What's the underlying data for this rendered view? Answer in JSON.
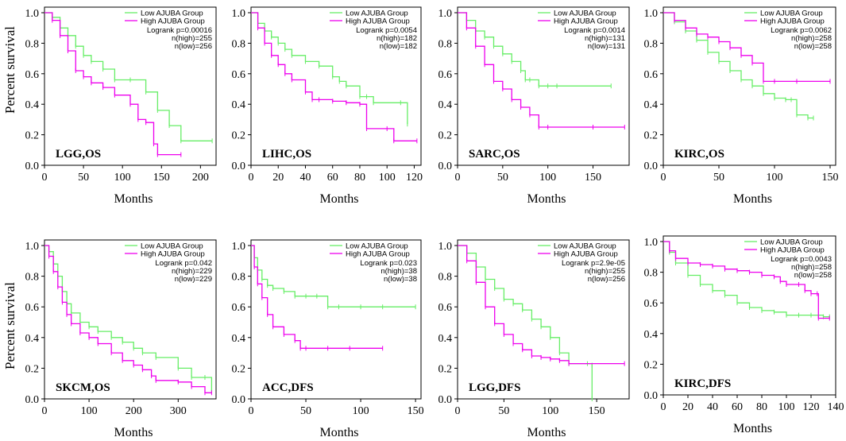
{
  "y_axis_label": "Percent survival",
  "colors": {
    "low": "#66ee66",
    "high": "#ee00ee",
    "axis": "#000000"
  },
  "chart_data": [
    {
      "type": "line",
      "panel": "LGG,OS",
      "title": "LGG,OS",
      "xlabel": "Months",
      "ylabel": "Percent survival",
      "xlim": [
        0,
        220
      ],
      "ylim": [
        0,
        1
      ],
      "xticks": [
        0,
        50,
        100,
        150,
        200
      ],
      "yticks": [
        0.0,
        0.2,
        0.4,
        0.6,
        0.8,
        1.0
      ],
      "legend": [
        "Low AJUBA Group",
        "High AJUBA Group"
      ],
      "stats": [
        "Logrank p=0.00016",
        "n(high)=255",
        "n(low)=256"
      ],
      "series": [
        {
          "name": "Low AJUBA Group",
          "x": [
            0,
            10,
            20,
            30,
            40,
            50,
            60,
            75,
            90,
            110,
            130,
            145,
            160,
            175,
            215
          ],
          "y": [
            1.0,
            0.97,
            0.9,
            0.85,
            0.78,
            0.72,
            0.68,
            0.63,
            0.56,
            0.56,
            0.48,
            0.36,
            0.26,
            0.16,
            0.16
          ]
        },
        {
          "name": "High AJUBA Group",
          "x": [
            0,
            10,
            20,
            30,
            40,
            50,
            60,
            75,
            90,
            110,
            120,
            130,
            140,
            145,
            175
          ],
          "y": [
            1.0,
            0.95,
            0.85,
            0.75,
            0.62,
            0.58,
            0.54,
            0.51,
            0.46,
            0.4,
            0.3,
            0.28,
            0.14,
            0.07,
            0.07
          ]
        }
      ]
    },
    {
      "type": "line",
      "panel": "LIHC,OS",
      "title": "LIHC,OS",
      "xlabel": "Months",
      "ylabel": "",
      "xlim": [
        0,
        125
      ],
      "ylim": [
        0,
        1
      ],
      "xticks": [
        0,
        20,
        40,
        60,
        80,
        100,
        120
      ],
      "yticks": [
        0.0,
        0.2,
        0.4,
        0.6,
        0.8,
        1.0
      ],
      "legend": [
        "Low AJUBA Group",
        "High AJUBA Group"
      ],
      "stats": [
        "Logrank p=0.0054",
        "n(high)=182",
        "n(low)=182"
      ],
      "series": [
        {
          "name": "Low AJUBA Group",
          "x": [
            0,
            5,
            10,
            15,
            20,
            25,
            30,
            40,
            50,
            60,
            65,
            70,
            80,
            85,
            90,
            110,
            115
          ],
          "y": [
            1.0,
            0.93,
            0.88,
            0.84,
            0.8,
            0.76,
            0.72,
            0.68,
            0.65,
            0.58,
            0.55,
            0.52,
            0.45,
            0.45,
            0.41,
            0.41,
            0.27
          ]
        },
        {
          "name": "High AJUBA Group",
          "x": [
            0,
            5,
            10,
            15,
            20,
            25,
            30,
            40,
            45,
            50,
            60,
            70,
            80,
            85,
            100,
            105,
            122
          ],
          "y": [
            1.0,
            0.9,
            0.8,
            0.72,
            0.66,
            0.6,
            0.56,
            0.48,
            0.43,
            0.43,
            0.42,
            0.41,
            0.4,
            0.24,
            0.24,
            0.16,
            0.16
          ]
        }
      ]
    },
    {
      "type": "line",
      "panel": "SARC,OS",
      "title": "SARC,OS",
      "xlabel": "Months",
      "ylabel": "",
      "xlim": [
        0,
        190
      ],
      "ylim": [
        0,
        1
      ],
      "xticks": [
        0,
        50,
        100,
        150
      ],
      "yticks": [
        0.0,
        0.2,
        0.4,
        0.6,
        0.8,
        1.0
      ],
      "legend": [
        "Low AJUBA Group",
        "High AJUBA Group"
      ],
      "stats": [
        "Logrank p=0.0014",
        "n(high)=131",
        "n(low)=131"
      ],
      "series": [
        {
          "name": "Low AJUBA Group",
          "x": [
            0,
            10,
            20,
            30,
            40,
            50,
            60,
            70,
            75,
            80,
            90,
            100,
            110,
            170
          ],
          "y": [
            1.0,
            0.95,
            0.88,
            0.84,
            0.78,
            0.73,
            0.68,
            0.62,
            0.56,
            0.56,
            0.52,
            0.52,
            0.52,
            0.52
          ]
        },
        {
          "name": "High AJUBA Group",
          "x": [
            0,
            10,
            20,
            30,
            40,
            50,
            60,
            70,
            80,
            90,
            100,
            150,
            185
          ],
          "y": [
            1.0,
            0.9,
            0.78,
            0.66,
            0.55,
            0.5,
            0.43,
            0.38,
            0.33,
            0.25,
            0.25,
            0.25,
            0.25
          ]
        }
      ]
    },
    {
      "type": "line",
      "panel": "KIRC,OS",
      "title": "KIRC,OS",
      "xlabel": "Months",
      "ylabel": "",
      "xlim": [
        0,
        155
      ],
      "ylim": [
        0,
        1
      ],
      "xticks": [
        0,
        50,
        100,
        150
      ],
      "yticks": [
        0.0,
        0.2,
        0.4,
        0.6,
        0.8,
        1.0
      ],
      "legend": [
        "Low AJUBA Group",
        "High AJUBA Group"
      ],
      "stats": [
        "Logrank p=0.0062",
        "n(high)=258",
        "n(low)=258"
      ],
      "series": [
        {
          "name": "Low AJUBA Group",
          "x": [
            0,
            10,
            20,
            30,
            40,
            50,
            60,
            70,
            80,
            90,
            100,
            110,
            115,
            120,
            130,
            135
          ],
          "y": [
            1.0,
            0.94,
            0.88,
            0.82,
            0.74,
            0.68,
            0.62,
            0.56,
            0.52,
            0.47,
            0.44,
            0.43,
            0.43,
            0.33,
            0.31,
            0.31
          ]
        },
        {
          "name": "High AJUBA Group",
          "x": [
            0,
            10,
            20,
            30,
            40,
            50,
            60,
            70,
            80,
            90,
            100,
            120,
            150
          ],
          "y": [
            1.0,
            0.95,
            0.9,
            0.86,
            0.84,
            0.81,
            0.77,
            0.72,
            0.67,
            0.55,
            0.55,
            0.55,
            0.55
          ]
        }
      ]
    },
    {
      "type": "line",
      "panel": "SKCM,OS",
      "title": "SKCM,OS",
      "xlabel": "Months",
      "ylabel": "Percent survival",
      "xlim": [
        0,
        385
      ],
      "ylim": [
        0,
        1
      ],
      "xticks": [
        0,
        100,
        200,
        300
      ],
      "yticks": [
        0.0,
        0.2,
        0.4,
        0.6,
        0.8,
        1.0
      ],
      "legend": [
        "Low AJUBA Group",
        "High AJUBA Group"
      ],
      "stats": [
        "Logrank p=0.042",
        "n(high)=229",
        "n(low)=229"
      ],
      "series": [
        {
          "name": "Low AJUBA Group",
          "x": [
            0,
            10,
            20,
            30,
            40,
            50,
            60,
            80,
            100,
            120,
            150,
            175,
            200,
            220,
            250,
            300,
            330,
            360,
            375
          ],
          "y": [
            1.0,
            0.96,
            0.88,
            0.8,
            0.7,
            0.62,
            0.56,
            0.5,
            0.47,
            0.44,
            0.4,
            0.37,
            0.33,
            0.3,
            0.27,
            0.2,
            0.14,
            0.14,
            0.05
          ]
        },
        {
          "name": "High AJUBA Group",
          "x": [
            0,
            10,
            20,
            30,
            40,
            50,
            60,
            80,
            100,
            120,
            150,
            175,
            200,
            220,
            240,
            250,
            300,
            330,
            360,
            375
          ],
          "y": [
            1.0,
            0.93,
            0.83,
            0.73,
            0.63,
            0.55,
            0.49,
            0.43,
            0.4,
            0.36,
            0.3,
            0.25,
            0.22,
            0.19,
            0.15,
            0.12,
            0.11,
            0.08,
            0.04,
            0.04
          ]
        }
      ]
    },
    {
      "type": "line",
      "panel": "ACC,DFS",
      "title": "ACC,DFS",
      "xlabel": "Months",
      "ylabel": "",
      "xlim": [
        0,
        155
      ],
      "ylim": [
        0,
        1
      ],
      "xticks": [
        0,
        50,
        100,
        150
      ],
      "yticks": [
        0.0,
        0.2,
        0.4,
        0.6,
        0.8,
        1.0
      ],
      "legend": [
        "Low AJUBA Group",
        "High AJUBA Group"
      ],
      "stats": [
        "Logrank p=0.023",
        "n(high)=38",
        "n(low)=38"
      ],
      "series": [
        {
          "name": "Low AJUBA Group",
          "x": [
            0,
            3,
            6,
            10,
            15,
            20,
            30,
            40,
            50,
            60,
            70,
            80,
            100,
            120,
            150
          ],
          "y": [
            1.0,
            0.92,
            0.84,
            0.78,
            0.74,
            0.72,
            0.7,
            0.67,
            0.67,
            0.67,
            0.6,
            0.6,
            0.6,
            0.6,
            0.6
          ]
        },
        {
          "name": "High AJUBA Group",
          "x": [
            0,
            3,
            6,
            10,
            15,
            20,
            30,
            40,
            45,
            50,
            70,
            90,
            120
          ],
          "y": [
            1.0,
            0.86,
            0.75,
            0.66,
            0.55,
            0.47,
            0.42,
            0.38,
            0.33,
            0.33,
            0.33,
            0.33,
            0.33
          ]
        }
      ]
    },
    {
      "type": "line",
      "panel": "LGG,DFS",
      "title": "LGG,DFS",
      "xlabel": "Months",
      "ylabel": "",
      "xlim": [
        0,
        185
      ],
      "ylim": [
        0,
        1
      ],
      "xticks": [
        0,
        50,
        100,
        150
      ],
      "yticks": [
        0.0,
        0.2,
        0.4,
        0.6,
        0.8,
        1.0
      ],
      "legend": [
        "Low AJUBA Group",
        "High AJUBA Group"
      ],
      "stats": [
        "Logrank p=2.9e-05",
        "n(high)=255",
        "n(low)=256"
      ],
      "series": [
        {
          "name": "Low AJUBA Group",
          "x": [
            0,
            10,
            20,
            30,
            40,
            50,
            60,
            70,
            80,
            90,
            100,
            110,
            120,
            140,
            145,
            145
          ],
          "y": [
            1.0,
            0.95,
            0.86,
            0.78,
            0.72,
            0.65,
            0.62,
            0.58,
            0.52,
            0.47,
            0.4,
            0.3,
            0.23,
            0.23,
            0.22,
            0.0
          ]
        },
        {
          "name": "High AJUBA Group",
          "x": [
            0,
            10,
            20,
            30,
            40,
            50,
            60,
            70,
            80,
            90,
            100,
            110,
            120,
            180
          ],
          "y": [
            1.0,
            0.9,
            0.76,
            0.6,
            0.49,
            0.42,
            0.36,
            0.32,
            0.28,
            0.27,
            0.26,
            0.25,
            0.23,
            0.23
          ]
        }
      ]
    },
    {
      "type": "line",
      "panel": "KIRC,DFS",
      "title": "KIRC,DFS",
      "xlabel": "Months",
      "ylabel": "",
      "xlim": [
        0,
        140
      ],
      "ylim": [
        0,
        1
      ],
      "xticks": [
        0,
        20,
        40,
        60,
        80,
        100,
        120,
        140
      ],
      "yticks": [
        0.0,
        0.2,
        0.4,
        0.6,
        0.8,
        1.0
      ],
      "legend": [
        "Low AJUBA Group",
        "High AJUBA Group"
      ],
      "stats": [
        "Logrank p=0.0043",
        "n(high)=258",
        "n(low)=258"
      ],
      "series": [
        {
          "name": "Low AJUBA Group",
          "x": [
            0,
            5,
            10,
            20,
            30,
            40,
            50,
            60,
            70,
            80,
            90,
            100,
            110,
            120,
            130,
            135
          ],
          "y": [
            1.0,
            0.93,
            0.86,
            0.78,
            0.72,
            0.68,
            0.65,
            0.6,
            0.57,
            0.55,
            0.54,
            0.52,
            0.52,
            0.52,
            0.51,
            0.51
          ]
        },
        {
          "name": "High AJUBA Group",
          "x": [
            0,
            5,
            10,
            20,
            30,
            40,
            50,
            60,
            70,
            80,
            90,
            95,
            100,
            110,
            115,
            120,
            125,
            126,
            135
          ],
          "y": [
            1.0,
            0.94,
            0.89,
            0.86,
            0.85,
            0.84,
            0.82,
            0.81,
            0.8,
            0.78,
            0.77,
            0.74,
            0.72,
            0.72,
            0.68,
            0.66,
            0.66,
            0.5,
            0.5
          ]
        }
      ]
    }
  ]
}
